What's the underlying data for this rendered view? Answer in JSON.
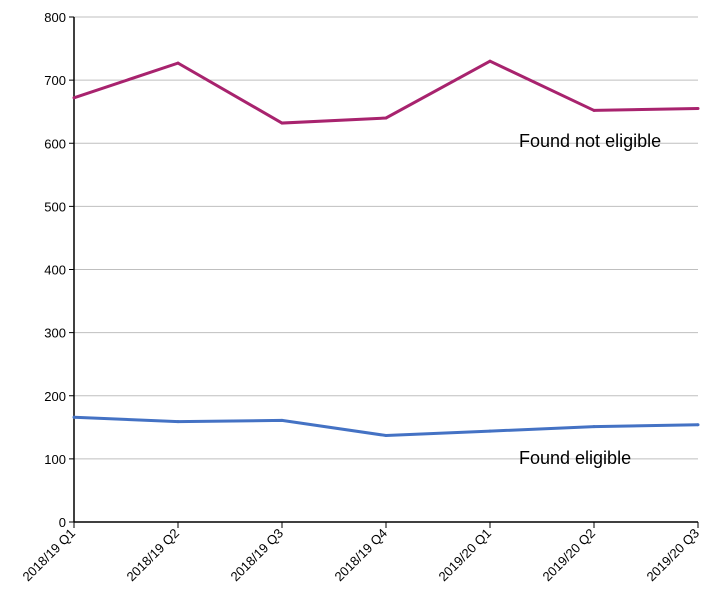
{
  "chart_data": {
    "type": "line",
    "categories": [
      "2018/19 Q1",
      "2018/19 Q2",
      "2018/19 Q3",
      "2018/19 Q4",
      "2019/20 Q1",
      "2019/20 Q2",
      "2019/20 Q3"
    ],
    "ylim": [
      0,
      800
    ],
    "yticks": [
      0,
      100,
      200,
      300,
      400,
      500,
      600,
      700,
      800
    ],
    "grid": "horizontal",
    "series": [
      {
        "name": "Found not eligible",
        "color": "#a8236e",
        "values": [
          672,
          727,
          632,
          640,
          730,
          652,
          655
        ]
      },
      {
        "name": "Found eligible",
        "color": "#4472c4",
        "values": [
          166,
          159,
          161,
          137,
          144,
          151,
          154
        ]
      }
    ]
  }
}
